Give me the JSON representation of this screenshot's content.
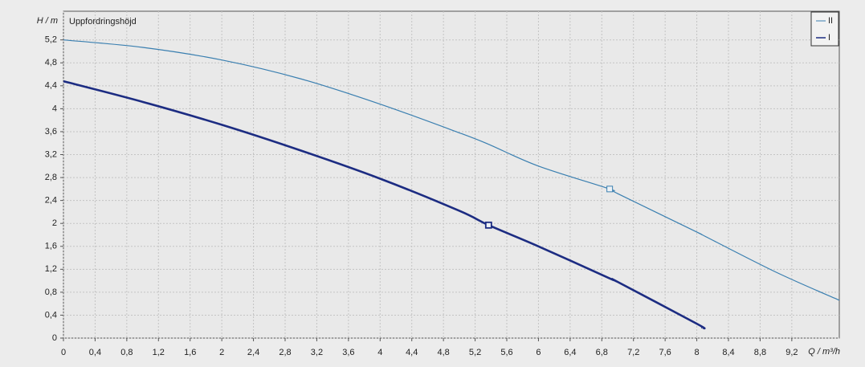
{
  "chart_data": {
    "type": "line",
    "title": "Uppfordringshöjd",
    "y_label": "H / m",
    "x_label": "Q / m³/h",
    "x": [
      0,
      1,
      2,
      3,
      4,
      5,
      5.37,
      6,
      6.9,
      7,
      8,
      8.07,
      9,
      9.8
    ],
    "series": [
      {
        "name": "II",
        "color": "#3a7fb0",
        "values": [
          5.2,
          5.07,
          4.85,
          4.52,
          4.08,
          3.58,
          3.38,
          3.0,
          2.6,
          2.52,
          1.85,
          1.8,
          1.15,
          0.66
        ],
        "duty_point": {
          "x": 6.9,
          "y": 2.6
        }
      },
      {
        "name": "I",
        "color": "#1c2c82",
        "values": [
          4.48,
          4.12,
          3.72,
          3.27,
          2.78,
          2.22,
          1.97,
          1.6,
          1.04,
          0.98,
          0.25,
          0.18,
          null,
          null
        ],
        "duty_point": {
          "x": 5.37,
          "y": 1.97
        }
      }
    ],
    "xlim": [
      0,
      9.8
    ],
    "xticks": [
      0,
      {
        "value": 0.4,
        "label": "0,4"
      },
      {
        "value": 0.8,
        "label": "0,8"
      },
      {
        "value": 1.2,
        "label": "1,2"
      },
      {
        "value": 1.6,
        "label": "1,6"
      },
      2,
      {
        "value": 2.4,
        "label": "2,4"
      },
      {
        "value": 2.8,
        "label": "2,8"
      },
      {
        "value": 3.2,
        "label": "3,2"
      },
      {
        "value": 3.6,
        "label": "3,6"
      },
      4,
      {
        "value": 4.4,
        "label": "4,4"
      },
      {
        "value": 4.8,
        "label": "4,8"
      },
      {
        "value": 5.2,
        "label": "5,2"
      },
      {
        "value": 5.6,
        "label": "5,6"
      },
      6,
      {
        "value": 6.4,
        "label": "6,4"
      },
      {
        "value": 6.8,
        "label": "6,8"
      },
      {
        "value": 7.2,
        "label": "7,2"
      },
      {
        "value": 7.6,
        "label": "7,6"
      },
      8,
      {
        "value": 8.4,
        "label": "8,4"
      },
      {
        "value": 8.8,
        "label": "8,8"
      },
      {
        "value": 9.2,
        "label": "9,2"
      }
    ],
    "ylim": [
      0,
      5.7
    ],
    "yticks": [
      0,
      {
        "value": 0.4,
        "label": "0,4"
      },
      {
        "value": 0.8,
        "label": "0,8"
      },
      {
        "value": 1.2,
        "label": "1,2"
      },
      {
        "value": 1.6,
        "label": "1,6"
      },
      2,
      {
        "value": 2.4,
        "label": "2,4"
      },
      {
        "value": 2.8,
        "label": "2,8"
      },
      {
        "value": 3.2,
        "label": "3,2"
      },
      {
        "value": 3.6,
        "label": "3,6"
      },
      4,
      {
        "value": 4.4,
        "label": "4,4"
      },
      {
        "value": 4.8,
        "label": "4,8"
      },
      {
        "value": 5.2,
        "label": "5,2"
      }
    ],
    "grid": true,
    "legend": "top-right"
  }
}
